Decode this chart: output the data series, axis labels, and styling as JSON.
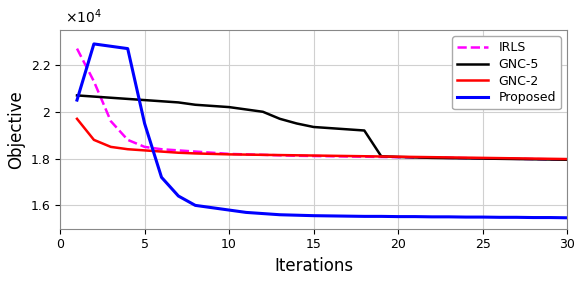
{
  "title": "",
  "xlabel": "Iterations",
  "ylabel": "Objective",
  "xlim": [
    0,
    30
  ],
  "ylim": [
    15000.0,
    23500.0
  ],
  "yticks": [
    16000.0,
    18000.0,
    20000.0,
    22000.0
  ],
  "xticks": [
    0,
    5,
    10,
    15,
    20,
    25,
    30
  ],
  "legend": [
    "IRLS",
    "GNC-5",
    "GNC-2",
    "Proposed"
  ],
  "legend_colors": [
    "#ff00ff",
    "#000000",
    "#ff0000",
    "#0000ff"
  ],
  "background_color": "#ffffff",
  "grid_color": "#d0d0d0",
  "irls_x": [
    1,
    2,
    3,
    4,
    5,
    6,
    7,
    8,
    9,
    10,
    11,
    12,
    13,
    14,
    15,
    16,
    17,
    18,
    19,
    20,
    21,
    22,
    23,
    24,
    25,
    26,
    27,
    28,
    29,
    30
  ],
  "irls_y": [
    22700.0,
    21300.0,
    19600.0,
    18800.0,
    18500.0,
    18400.0,
    18350.0,
    18300.0,
    18250.0,
    18200.0,
    18180.0,
    18160.0,
    18140.0,
    18120.0,
    18110.0,
    18100.0,
    18090.0,
    18080.0,
    18070.0,
    18060.0,
    18050.0,
    18040.0,
    18030.0,
    18020.0,
    18010.0,
    18000.0,
    17990.0,
    17980.0,
    17970.0,
    17960.0
  ],
  "gnc5_x": [
    1,
    2,
    3,
    4,
    5,
    6,
    7,
    8,
    9,
    10,
    11,
    12,
    13,
    14,
    15,
    16,
    17,
    18,
    19,
    20,
    21,
    22,
    23,
    24,
    25,
    26,
    27,
    28,
    29,
    30
  ],
  "gnc5_y": [
    20700.0,
    20650.0,
    20600.0,
    20550.0,
    20500.0,
    20450.0,
    20400.0,
    20300.0,
    20250.0,
    20200.0,
    20100.0,
    20000.0,
    19700.0,
    19500.0,
    19350.0,
    19300.0,
    19250.0,
    19200.0,
    18100.0,
    18070.0,
    18050.0,
    18030.0,
    18020.0,
    18010.0,
    18000.0,
    17990.0,
    17980.0,
    17970.0,
    17960.0,
    17950.0
  ],
  "gnc2_x": [
    1,
    2,
    3,
    4,
    5,
    6,
    7,
    8,
    9,
    10,
    11,
    12,
    13,
    14,
    15,
    16,
    17,
    18,
    19,
    20,
    21,
    22,
    23,
    24,
    25,
    26,
    27,
    28,
    29,
    30
  ],
  "gnc2_y": [
    19700.0,
    18800.0,
    18500.0,
    18400.0,
    18350.0,
    18300.0,
    18250.0,
    18220.0,
    18200.0,
    18180.0,
    18170.0,
    18160.0,
    18150.0,
    18140.0,
    18130.0,
    18120.0,
    18110.0,
    18100.0,
    18090.0,
    18080.0,
    18070.0,
    18060.0,
    18050.0,
    18040.0,
    18030.0,
    18020.0,
    18010.0,
    18000.0,
    17990.0,
    17980.0
  ],
  "prop_x": [
    1,
    2,
    3,
    4,
    5,
    6,
    7,
    8,
    9,
    10,
    11,
    12,
    13,
    14,
    15,
    16,
    17,
    18,
    19,
    20,
    21,
    22,
    23,
    24,
    25,
    26,
    27,
    28,
    29,
    30
  ],
  "prop_y": [
    20500.0,
    22900.0,
    22800.0,
    22700.0,
    19500.0,
    17200.0,
    16400.0,
    16000.0,
    15900.0,
    15800.0,
    15700.0,
    15650.0,
    15600.0,
    15580.0,
    15560.0,
    15550.0,
    15540.0,
    15530.0,
    15530.0,
    15520.0,
    15520.0,
    15510.0,
    15510.0,
    15500.0,
    15500.0,
    15490.0,
    15490.0,
    15480.0,
    15480.0,
    15470.0
  ]
}
